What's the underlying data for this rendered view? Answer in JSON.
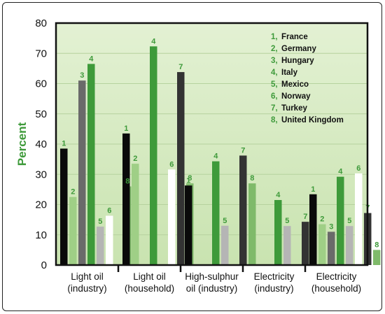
{
  "chart_data": {
    "type": "bar",
    "ylabel": "Percent",
    "ylim": [
      0,
      80
    ],
    "yticks": [
      0,
      10,
      20,
      30,
      40,
      50,
      60,
      70,
      80
    ],
    "grid": true,
    "legend_position": "top-right",
    "categories": [
      [
        "Light oil",
        "(industry)"
      ],
      [
        "Light oil",
        "(household)"
      ],
      [
        "High-sulphur",
        "oil (industry)"
      ],
      [
        "Electricity",
        "(industry)"
      ],
      [
        "Electricity",
        "(household)"
      ]
    ],
    "series": [
      {
        "id": "1",
        "name": "France",
        "color": "#0a0a0a",
        "values": [
          38.5,
          43.5,
          26.3,
          null,
          23.4
        ]
      },
      {
        "id": "2",
        "name": "Germany",
        "color": "#9fcf86",
        "values": [
          22.5,
          33.5,
          null,
          null,
          13.5
        ]
      },
      {
        "id": "3",
        "name": "Hungary",
        "color": "#6a6a6a",
        "values": [
          61,
          null,
          null,
          null,
          11
        ]
      },
      {
        "id": "4",
        "name": "Italy",
        "color": "#3e9a3a",
        "values": [
          66.5,
          72.3,
          34.3,
          21.5,
          29.2
        ]
      },
      {
        "id": "5",
        "name": "Mexico",
        "color": "#b5b5b5",
        "values": [
          12.7,
          null,
          13,
          12.9,
          12.9
        ]
      },
      {
        "id": "6",
        "name": "Norway",
        "color": "#ffffff",
        "values": [
          16.3,
          31.6,
          null,
          null,
          30.3
        ]
      },
      {
        "id": "7",
        "name": "Turkey",
        "color": "#333333",
        "values": [
          null,
          63.8,
          36.2,
          14.3,
          17.2
        ]
      },
      {
        "id": "8",
        "name": "United Kingdom",
        "color": "#7fba6a",
        "values": [
          26,
          27,
          27,
          null,
          5
        ]
      }
    ]
  }
}
